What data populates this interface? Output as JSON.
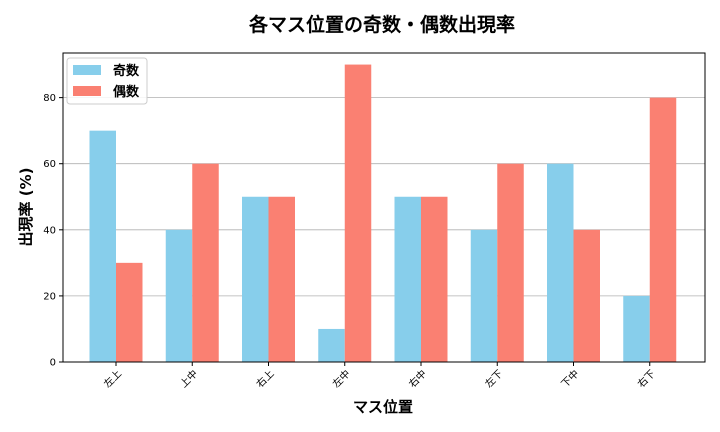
{
  "chart_data": {
    "type": "bar",
    "title": "各マス位置の奇数・偶数出現率",
    "xlabel": "マス位置",
    "ylabel": "出現率 (%)",
    "categories": [
      "左上",
      "上中",
      "右上",
      "左中",
      "右中",
      "左下",
      "下中",
      "右下"
    ],
    "series": [
      {
        "name": "奇数",
        "color": "#87ceeb",
        "values": [
          70,
          40,
          50,
          10,
          50,
          40,
          60,
          20
        ]
      },
      {
        "name": "偶数",
        "color": "#fa8072",
        "values": [
          30,
          60,
          50,
          90,
          50,
          60,
          40,
          80
        ]
      }
    ],
    "ylim": [
      0,
      93.5
    ],
    "yticks": [
      0,
      20,
      40,
      60,
      80
    ],
    "grid": "y",
    "legend": "top-left"
  }
}
